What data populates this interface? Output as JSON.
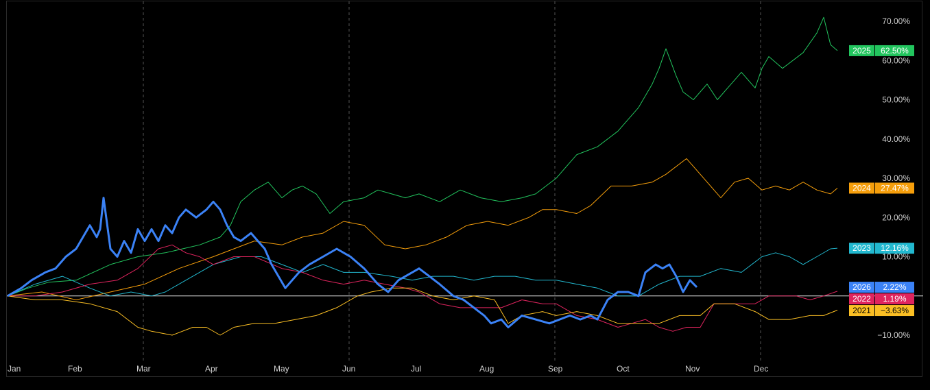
{
  "chart_data": {
    "type": "line",
    "title": "",
    "xlabel": "",
    "ylabel": "",
    "x_months": [
      "Jan",
      "Feb",
      "Mar",
      "Apr",
      "May",
      "Jun",
      "Jul",
      "Aug",
      "Sep",
      "Oct",
      "Nov",
      "Dec"
    ],
    "xlim": [
      0,
      12
    ],
    "ylim": [
      -14,
      75
    ],
    "y_ticks": [
      70,
      60,
      50,
      40,
      30,
      20,
      10,
      -10
    ],
    "y_tick_labels": [
      "70.00%",
      "60.00%",
      "50.00%",
      "40.00%",
      "30.00%",
      "20.00%",
      "10.00%",
      "−10.00%"
    ],
    "vertical_gridlines_at_months": [
      2,
      5,
      8,
      11
    ],
    "zero_line": true,
    "legend_placement": "right",
    "series": [
      {
        "name": "2025",
        "color": "#22c55e",
        "width": 1,
        "label": "62.50%",
        "points": [
          [
            0,
            0
          ],
          [
            0.3,
            2
          ],
          [
            0.6,
            3.5
          ],
          [
            1.0,
            4
          ],
          [
            1.5,
            8
          ],
          [
            1.9,
            10
          ],
          [
            2.3,
            11
          ],
          [
            2.8,
            13
          ],
          [
            3.1,
            15
          ],
          [
            3.25,
            18
          ],
          [
            3.4,
            24
          ],
          [
            3.6,
            27
          ],
          [
            3.8,
            29
          ],
          [
            4.0,
            25
          ],
          [
            4.15,
            27
          ],
          [
            4.3,
            28
          ],
          [
            4.5,
            26
          ],
          [
            4.7,
            21
          ],
          [
            4.9,
            24
          ],
          [
            5.2,
            25
          ],
          [
            5.4,
            27
          ],
          [
            5.6,
            26
          ],
          [
            5.8,
            25
          ],
          [
            6.0,
            26
          ],
          [
            6.3,
            24
          ],
          [
            6.6,
            27
          ],
          [
            6.9,
            25
          ],
          [
            7.2,
            24
          ],
          [
            7.5,
            25
          ],
          [
            7.7,
            26
          ],
          [
            8.0,
            30
          ],
          [
            8.3,
            36
          ],
          [
            8.6,
            38
          ],
          [
            8.9,
            42
          ],
          [
            9.2,
            48
          ],
          [
            9.4,
            54
          ],
          [
            9.5,
            58
          ],
          [
            9.6,
            63
          ],
          [
            9.75,
            56
          ],
          [
            9.85,
            52
          ],
          [
            10.0,
            50
          ],
          [
            10.2,
            54
          ],
          [
            10.35,
            50
          ],
          [
            10.5,
            53
          ],
          [
            10.7,
            57
          ],
          [
            10.9,
            53
          ],
          [
            11.0,
            58
          ],
          [
            11.1,
            61
          ],
          [
            11.3,
            58
          ],
          [
            11.6,
            62
          ],
          [
            11.8,
            67
          ],
          [
            11.9,
            71
          ],
          [
            12.0,
            64
          ],
          [
            12.1,
            62.5
          ]
        ]
      },
      {
        "name": "2024",
        "color": "#f59e0b",
        "width": 1,
        "label": "27.47%",
        "points": [
          [
            0,
            0
          ],
          [
            0.5,
            1
          ],
          [
            1.0,
            -1
          ],
          [
            1.5,
            1
          ],
          [
            2.0,
            3
          ],
          [
            2.5,
            7
          ],
          [
            3.0,
            10
          ],
          [
            3.3,
            12
          ],
          [
            3.6,
            14
          ],
          [
            4.0,
            13
          ],
          [
            4.3,
            15
          ],
          [
            4.6,
            16
          ],
          [
            4.9,
            19
          ],
          [
            5.2,
            18
          ],
          [
            5.5,
            13
          ],
          [
            5.8,
            12
          ],
          [
            6.1,
            13
          ],
          [
            6.4,
            15
          ],
          [
            6.7,
            18
          ],
          [
            7.0,
            19
          ],
          [
            7.3,
            18
          ],
          [
            7.6,
            20
          ],
          [
            7.8,
            22
          ],
          [
            8.0,
            22
          ],
          [
            8.3,
            21
          ],
          [
            8.5,
            23
          ],
          [
            8.8,
            28
          ],
          [
            9.1,
            28
          ],
          [
            9.4,
            29
          ],
          [
            9.6,
            31
          ],
          [
            9.9,
            35
          ],
          [
            10.0,
            33
          ],
          [
            10.2,
            29
          ],
          [
            10.4,
            25
          ],
          [
            10.6,
            29
          ],
          [
            10.8,
            30
          ],
          [
            11.0,
            27
          ],
          [
            11.2,
            28
          ],
          [
            11.4,
            27
          ],
          [
            11.6,
            29
          ],
          [
            11.8,
            27
          ],
          [
            12.0,
            26
          ],
          [
            12.1,
            27.47
          ]
        ]
      },
      {
        "name": "2023",
        "color": "#22b8cf",
        "width": 1,
        "label": "12.16%",
        "points": [
          [
            0,
            0
          ],
          [
            0.4,
            3
          ],
          [
            0.8,
            5
          ],
          [
            1.2,
            2
          ],
          [
            1.5,
            0
          ],
          [
            1.8,
            1
          ],
          [
            2.1,
            0
          ],
          [
            2.3,
            1
          ],
          [
            2.6,
            4
          ],
          [
            3.0,
            8
          ],
          [
            3.4,
            10
          ],
          [
            3.7,
            10
          ],
          [
            4.0,
            8
          ],
          [
            4.3,
            6
          ],
          [
            4.6,
            8
          ],
          [
            4.9,
            6
          ],
          [
            5.2,
            6
          ],
          [
            5.6,
            5
          ],
          [
            5.9,
            4
          ],
          [
            6.2,
            5
          ],
          [
            6.5,
            5
          ],
          [
            6.8,
            4
          ],
          [
            7.1,
            5
          ],
          [
            7.4,
            5
          ],
          [
            7.7,
            4
          ],
          [
            8.0,
            4
          ],
          [
            8.3,
            3
          ],
          [
            8.6,
            2
          ],
          [
            8.9,
            0
          ],
          [
            9.2,
            0
          ],
          [
            9.5,
            3
          ],
          [
            9.8,
            5
          ],
          [
            10.1,
            5
          ],
          [
            10.4,
            7
          ],
          [
            10.7,
            6
          ],
          [
            11.0,
            10
          ],
          [
            11.2,
            11
          ],
          [
            11.4,
            10
          ],
          [
            11.6,
            8
          ],
          [
            11.8,
            10
          ],
          [
            12.0,
            12
          ],
          [
            12.1,
            12.16
          ]
        ]
      },
      {
        "name": "2022",
        "color": "#e0245e",
        "width": 1,
        "label": "1.19%",
        "points": [
          [
            0,
            0
          ],
          [
            0.4,
            0
          ],
          [
            0.8,
            1
          ],
          [
            1.2,
            3
          ],
          [
            1.6,
            4
          ],
          [
            1.9,
            7
          ],
          [
            2.2,
            12
          ],
          [
            2.4,
            13
          ],
          [
            2.6,
            11
          ],
          [
            2.8,
            10
          ],
          [
            3.0,
            8
          ],
          [
            3.3,
            10
          ],
          [
            3.6,
            10
          ],
          [
            4.0,
            7
          ],
          [
            4.3,
            6
          ],
          [
            4.6,
            4
          ],
          [
            4.9,
            3
          ],
          [
            5.2,
            4
          ],
          [
            5.5,
            3
          ],
          [
            5.8,
            2
          ],
          [
            6.0,
            1
          ],
          [
            6.3,
            -2
          ],
          [
            6.6,
            -3
          ],
          [
            6.9,
            -3
          ],
          [
            7.2,
            -3
          ],
          [
            7.5,
            -1
          ],
          [
            7.8,
            -2
          ],
          [
            8.0,
            -2
          ],
          [
            8.3,
            -5
          ],
          [
            8.6,
            -6
          ],
          [
            8.9,
            -8
          ],
          [
            9.1,
            -7
          ],
          [
            9.3,
            -6
          ],
          [
            9.5,
            -8
          ],
          [
            9.7,
            -9
          ],
          [
            9.9,
            -8
          ],
          [
            10.1,
            -8
          ],
          [
            10.3,
            -2
          ],
          [
            10.6,
            -2
          ],
          [
            10.9,
            -2
          ],
          [
            11.1,
            0
          ],
          [
            11.3,
            0
          ],
          [
            11.5,
            0
          ],
          [
            11.7,
            -1
          ],
          [
            11.9,
            0
          ],
          [
            12.1,
            1.19
          ]
        ]
      },
      {
        "name": "2021",
        "color": "#fbbf24",
        "width": 1,
        "label": "−3.63%",
        "points": [
          [
            0,
            0
          ],
          [
            0.4,
            -1
          ],
          [
            0.8,
            -1
          ],
          [
            1.2,
            -2
          ],
          [
            1.6,
            -4
          ],
          [
            1.9,
            -8
          ],
          [
            2.1,
            -9
          ],
          [
            2.4,
            -10
          ],
          [
            2.7,
            -8
          ],
          [
            2.9,
            -8
          ],
          [
            3.1,
            -10
          ],
          [
            3.3,
            -8
          ],
          [
            3.6,
            -7
          ],
          [
            3.9,
            -7
          ],
          [
            4.2,
            -6
          ],
          [
            4.5,
            -5
          ],
          [
            4.8,
            -3
          ],
          [
            5.1,
            0
          ],
          [
            5.3,
            1
          ],
          [
            5.6,
            2
          ],
          [
            5.9,
            2
          ],
          [
            6.2,
            0
          ],
          [
            6.5,
            -1
          ],
          [
            6.8,
            0
          ],
          [
            7.1,
            -1
          ],
          [
            7.3,
            -7
          ],
          [
            7.5,
            -5
          ],
          [
            7.8,
            -4
          ],
          [
            8.0,
            -5
          ],
          [
            8.3,
            -4
          ],
          [
            8.6,
            -5
          ],
          [
            8.9,
            -7
          ],
          [
            9.2,
            -7
          ],
          [
            9.5,
            -7
          ],
          [
            9.8,
            -5
          ],
          [
            10.1,
            -5
          ],
          [
            10.3,
            -2
          ],
          [
            10.6,
            -2
          ],
          [
            10.9,
            -4
          ],
          [
            11.1,
            -6
          ],
          [
            11.4,
            -6
          ],
          [
            11.7,
            -5
          ],
          [
            11.9,
            -5
          ],
          [
            12.1,
            -3.63
          ]
        ]
      },
      {
        "name": "2026",
        "color": "#3b82f6",
        "width": 3,
        "label": "2.22%",
        "points": [
          [
            0,
            0
          ],
          [
            0.2,
            2
          ],
          [
            0.35,
            4
          ],
          [
            0.55,
            6
          ],
          [
            0.7,
            7
          ],
          [
            0.85,
            10
          ],
          [
            1.0,
            12
          ],
          [
            1.1,
            15
          ],
          [
            1.2,
            18
          ],
          [
            1.3,
            15
          ],
          [
            1.35,
            17
          ],
          [
            1.4,
            25
          ],
          [
            1.5,
            12
          ],
          [
            1.6,
            10
          ],
          [
            1.7,
            14
          ],
          [
            1.8,
            11
          ],
          [
            1.9,
            17
          ],
          [
            2.0,
            14
          ],
          [
            2.1,
            17
          ],
          [
            2.2,
            14
          ],
          [
            2.3,
            18
          ],
          [
            2.4,
            16
          ],
          [
            2.5,
            20
          ],
          [
            2.6,
            22
          ],
          [
            2.75,
            20
          ],
          [
            2.9,
            22
          ],
          [
            3.0,
            24
          ],
          [
            3.1,
            22
          ],
          [
            3.2,
            18
          ],
          [
            3.3,
            15
          ],
          [
            3.4,
            14
          ],
          [
            3.55,
            16
          ],
          [
            3.65,
            14
          ],
          [
            3.75,
            12
          ],
          [
            3.85,
            8
          ],
          [
            3.95,
            5
          ],
          [
            4.05,
            2
          ],
          [
            4.15,
            4
          ],
          [
            4.25,
            6
          ],
          [
            4.4,
            8
          ],
          [
            4.6,
            10
          ],
          [
            4.8,
            12
          ],
          [
            5.0,
            10
          ],
          [
            5.2,
            7
          ],
          [
            5.4,
            3
          ],
          [
            5.55,
            1
          ],
          [
            5.7,
            4
          ],
          [
            5.9,
            6
          ],
          [
            6.0,
            7
          ],
          [
            6.15,
            5
          ],
          [
            6.3,
            3
          ],
          [
            6.5,
            0
          ],
          [
            6.65,
            -1
          ],
          [
            6.8,
            -3
          ],
          [
            6.95,
            -5
          ],
          [
            7.05,
            -7
          ],
          [
            7.2,
            -6
          ],
          [
            7.3,
            -8
          ],
          [
            7.5,
            -5
          ],
          [
            7.7,
            -6
          ],
          [
            7.9,
            -7
          ],
          [
            8.05,
            -6
          ],
          [
            8.2,
            -5
          ],
          [
            8.35,
            -6
          ],
          [
            8.5,
            -5
          ],
          [
            8.6,
            -6
          ],
          [
            8.75,
            -1
          ],
          [
            8.9,
            1
          ],
          [
            9.05,
            1
          ],
          [
            9.2,
            0
          ],
          [
            9.3,
            6
          ],
          [
            9.45,
            8
          ],
          [
            9.55,
            7
          ],
          [
            9.65,
            8
          ],
          [
            9.75,
            5
          ],
          [
            9.85,
            1
          ],
          [
            9.95,
            4
          ],
          [
            10.05,
            2.22
          ]
        ]
      }
    ]
  }
}
